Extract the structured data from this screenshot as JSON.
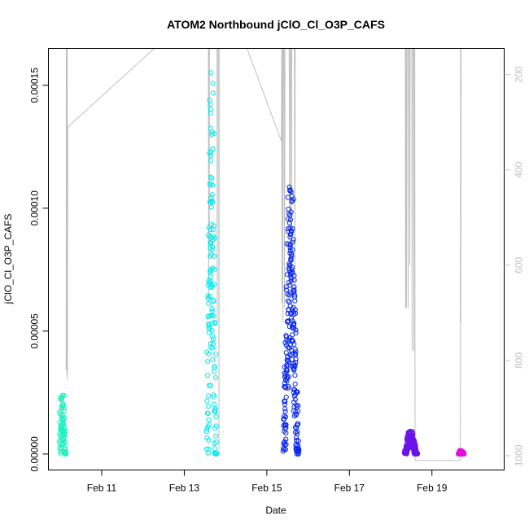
{
  "chart_data": {
    "type": "scatter",
    "title": "ATOM2 Northbound jClO_Cl_O3P_CAFS",
    "xlabel": "Date",
    "ylabel": "jClO_Cl_O3P_CAFS",
    "xlim": [
      "2016-02-09T17:00",
      "2016-02-20T18:00"
    ],
    "ylim": [
      -6.5e-06,
      0.000165
    ],
    "x_ticks": [
      {
        "date": "2016-02-11",
        "label": "Feb 11"
      },
      {
        "date": "2016-02-13",
        "label": "Feb 13"
      },
      {
        "date": "2016-02-15",
        "label": "Feb 15"
      },
      {
        "date": "2016-02-17",
        "label": "Feb 17"
      },
      {
        "date": "2016-02-19",
        "label": "Feb 19"
      }
    ],
    "y_ticks": [
      {
        "value": 0.0,
        "label": "0.00000"
      },
      {
        "value": 5e-05,
        "label": "0.00005"
      },
      {
        "value": 0.0001,
        "label": "0.00010"
      },
      {
        "value": 0.00015,
        "label": "0.00015"
      }
    ],
    "secondary_axis": {
      "description": "pressure (reversed)",
      "range": [
        1030,
        145
      ],
      "ticks": [
        {
          "value": 200,
          "label": "200"
        },
        {
          "value": 400,
          "label": "400"
        },
        {
          "value": 600,
          "label": "600"
        },
        {
          "value": 800,
          "label": "800"
        },
        {
          "value": 1000,
          "label": "1000"
        }
      ],
      "color": "#c0c0c0",
      "line": [
        [
          "2016-02-10T03:20",
          820
        ],
        [
          "2016-02-10T03:25",
          140
        ],
        [
          "2016-02-10T03:30",
          780
        ],
        [
          "2016-02-10T03:40",
          140
        ],
        [
          "2016-02-10T03:45",
          830
        ],
        [
          "2016-02-10T03:55",
          140
        ],
        [
          "2016-02-10T04:05",
          840
        ],
        [
          "2016-02-10T04:15",
          310
        ],
        [
          "2016-02-12T08:00",
          140
        ],
        [
          "2016-02-13T14:00",
          140
        ],
        [
          "2016-02-13T14:10",
          680
        ],
        [
          "2016-02-13T14:20",
          140
        ],
        [
          "2016-02-13T14:30",
          560
        ],
        [
          "2016-02-13T14:40",
          140
        ],
        [
          "2016-02-13T19:00",
          140
        ],
        [
          "2016-02-13T19:10",
          720
        ],
        [
          "2016-02-13T19:20",
          140
        ],
        [
          "2016-02-13T20:00",
          140
        ],
        [
          "2016-02-13T20:10",
          1000
        ],
        [
          "2016-02-13T20:20",
          140
        ],
        [
          "2016-02-14T12:00",
          140
        ],
        [
          "2016-02-15T08:30",
          340
        ],
        [
          "2016-02-15T08:40",
          140
        ],
        [
          "2016-02-15T08:50",
          680
        ],
        [
          "2016-02-15T09:00",
          140
        ],
        [
          "2016-02-15T09:20",
          720
        ],
        [
          "2016-02-15T09:30",
          140
        ],
        [
          "2016-02-15T10:00",
          150
        ],
        [
          "2016-02-15T10:20",
          690
        ],
        [
          "2016-02-15T10:30",
          140
        ],
        [
          "2016-02-15T13:00",
          140
        ],
        [
          "2016-02-15T13:20",
          600
        ],
        [
          "2016-02-15T13:30",
          140
        ],
        [
          "2016-02-15T14:00",
          140
        ],
        [
          "2016-02-15T14:20",
          700
        ],
        [
          "2016-02-15T14:30",
          140
        ],
        [
          "2016-02-15T16:00",
          140
        ],
        [
          "2016-02-15T16:20",
          660
        ],
        [
          "2016-02-15T16:30",
          140
        ],
        [
          "2016-02-18T08:30",
          140
        ],
        [
          "2016-02-18T08:40",
          690
        ],
        [
          "2016-02-18T08:50",
          140
        ],
        [
          "2016-02-18T09:10",
          690
        ],
        [
          "2016-02-18T09:20",
          140
        ],
        [
          "2016-02-18T10:00",
          140
        ],
        [
          "2016-02-18T10:10",
          690
        ],
        [
          "2016-02-18T10:20",
          140
        ],
        [
          "2016-02-18T11:00",
          140
        ],
        [
          "2016-02-18T11:10",
          600
        ],
        [
          "2016-02-18T11:20",
          140
        ],
        [
          "2016-02-18T12:20",
          140
        ],
        [
          "2016-02-18T12:30",
          780
        ],
        [
          "2016-02-18T12:40",
          140
        ],
        [
          "2016-02-18T13:20",
          140
        ],
        [
          "2016-02-18T13:30",
          780
        ],
        [
          "2016-02-18T13:40",
          140
        ],
        [
          "2016-02-18T14:00",
          140
        ],
        [
          "2016-02-18T14:10",
          1010
        ],
        [
          "2016-02-18T17:00",
          1010
        ],
        [
          "2016-02-19T16:30",
          1010
        ],
        [
          "2016-02-19T16:40",
          140
        ],
        [
          "2016-02-19T16:50",
          720
        ],
        [
          "2016-02-19T17:00",
          140
        ]
      ]
    },
    "series": [
      {
        "color": "#1ff0c0",
        "segments": [
          {
            "t0": "2016-02-09T23:50",
            "t1": "2016-02-10T02:30",
            "peak": 2.65e-05,
            "taper_peak": 1.5e-06
          }
        ]
      },
      {
        "color": "#06e8ec",
        "segments": [
          {
            "t0": "2016-02-13T13:30",
            "t1": "2016-02-13T18:10",
            "peak": 0.000159,
            "taper_peak": 1.5e-06
          }
        ]
      },
      {
        "color": "#0a28ec",
        "segments": [
          {
            "t0": "2016-02-15T10:00",
            "t1": "2016-02-15T18:10",
            "peak": 0.000113,
            "taper_peak": 8e-06
          }
        ]
      },
      {
        "color": "#6a14e8",
        "segments": [
          {
            "t0": "2016-02-18T08:30",
            "t1": "2016-02-18T15:00",
            "peak": 9.5e-06,
            "taper_peak": 5e-07
          }
        ]
      },
      {
        "color": "#e010e0",
        "segments": [
          {
            "t0": "2016-02-19T16:00",
            "t1": "2016-02-19T18:00",
            "peak": 1.5e-06,
            "taper_peak": 0.0
          }
        ]
      }
    ],
    "grid": false,
    "legend": "none"
  }
}
